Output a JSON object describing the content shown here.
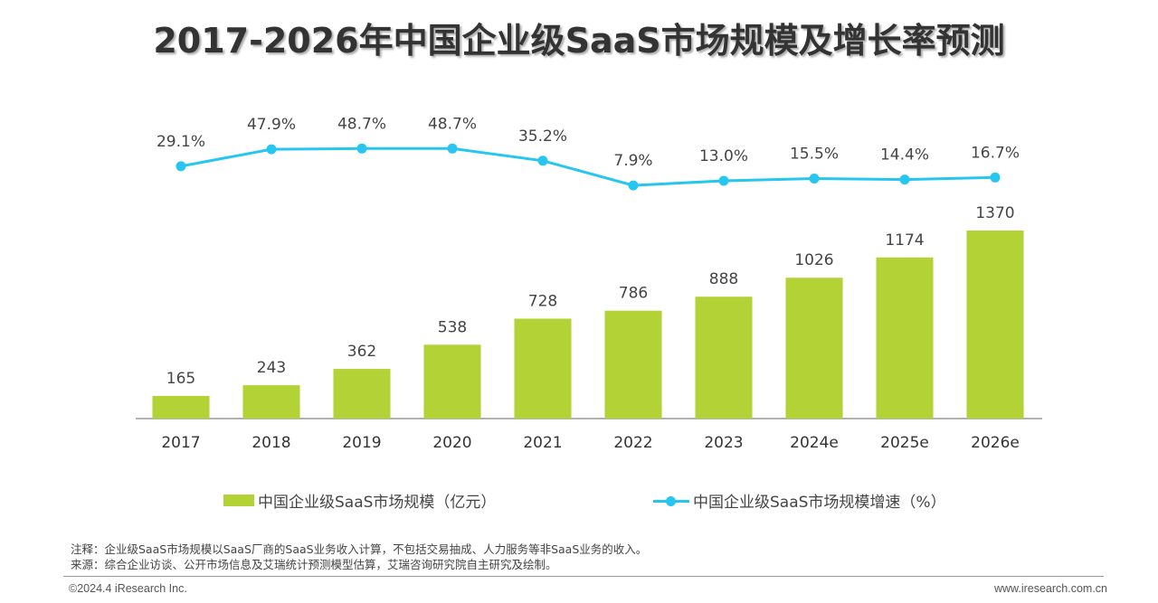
{
  "title": "2017-2026年中国企业级SaaS市场规模及增长率预测",
  "chart_data": {
    "type": "bar+line",
    "title": "2017-2026年中国企业级SaaS市场规模及增长率预测",
    "categories": [
      "2017",
      "2018",
      "2019",
      "2020",
      "2021",
      "2022",
      "2023",
      "2024e",
      "2025e",
      "2026e"
    ],
    "series": [
      {
        "name": "中国企业级SaaS市场规模（亿元）",
        "type": "bar",
        "color": "#b2d235",
        "values": [
          165,
          243,
          362,
          538,
          728,
          786,
          888,
          1026,
          1174,
          1370
        ],
        "labels": [
          "165",
          "243",
          "362",
          "538",
          "728",
          "786",
          "888",
          "1026",
          "1174",
          "1370"
        ]
      },
      {
        "name": "中国企业级SaaS市场规模增速（%）",
        "type": "line",
        "color": "#27c6f0",
        "values": [
          29.1,
          47.9,
          48.7,
          48.7,
          35.2,
          7.9,
          13.0,
          15.5,
          14.4,
          16.7
        ],
        "labels": [
          "29.1%",
          "47.9%",
          "48.7%",
          "48.7%",
          "35.2%",
          "7.9%",
          "13.0%",
          "15.5%",
          "14.4%",
          "16.7%"
        ]
      }
    ],
    "xlabel": "",
    "ylabel": "",
    "grid": false,
    "legend": "bottom"
  },
  "notes": {
    "note": "注释：企业级SaaS市场规模以SaaS厂商的SaaS业务收入计算，不包括交易抽成、人力服务等非SaaS业务的收入。",
    "source": "来源：综合企业访谈、公开市场信息及艾瑞统计预测模型估算，艾瑞咨询研究院自主研究及绘制。"
  },
  "footer": {
    "copyright": "©2024.4 iResearch Inc.",
    "website": "www.iresearch.com.cn"
  }
}
